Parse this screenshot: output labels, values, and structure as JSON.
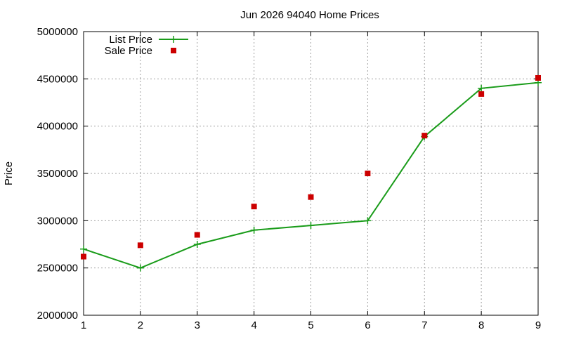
{
  "chart_data": {
    "type": "line",
    "title": "Jun 2026 94040 Home Prices",
    "xlabel": "",
    "ylabel": "Price",
    "xlim": [
      1,
      9
    ],
    "ylim": [
      2000000,
      5000000
    ],
    "xticks": [
      "1",
      "2",
      "3",
      "4",
      "5",
      "6",
      "7",
      "8",
      "9"
    ],
    "yticks": [
      "2000000",
      "2500000",
      "3000000",
      "3500000",
      "4000000",
      "4500000",
      "5000000"
    ],
    "grid": true,
    "legend_position": "top-left",
    "series": [
      {
        "name": "List Price",
        "style": "line-with-plus-markers",
        "color": "#1a9c1a",
        "x": [
          1,
          2,
          3,
          4,
          5,
          6,
          7,
          8,
          9
        ],
        "y": [
          2700000,
          2500000,
          2750000,
          2900000,
          2950000,
          3000000,
          3890000,
          4400000,
          4460000
        ]
      },
      {
        "name": "Sale Price",
        "style": "square-markers",
        "color": "#cc0000",
        "x": [
          1,
          2,
          3,
          4,
          5,
          6,
          7,
          8,
          9
        ],
        "y": [
          2620000,
          2740000,
          2850000,
          3150000,
          3250000,
          3500000,
          3900000,
          4340000,
          4510000
        ]
      }
    ]
  }
}
